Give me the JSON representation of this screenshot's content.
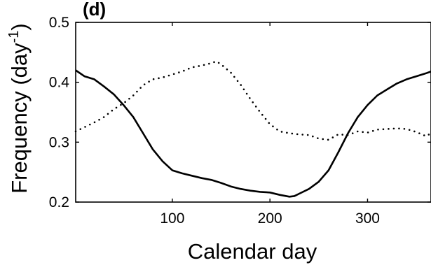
{
  "chart_data": {
    "type": "line",
    "panel_label": "(d)",
    "xlabel": "Calendar day",
    "ylabel_main": "Frequency (day",
    "ylabel_exponent": "-1",
    "ylabel_close": ")",
    "xlim": [
      1,
      365
    ],
    "ylim": [
      0.2,
      0.5
    ],
    "xticks": [
      100,
      200,
      300
    ],
    "xtick_labels": [
      "100",
      "200",
      "300"
    ],
    "yticks": [
      0.2,
      0.3,
      0.4,
      0.5
    ],
    "ytick_labels": [
      "0.2",
      "0.3",
      "0.4",
      "0.5"
    ],
    "grid": false,
    "series": [
      {
        "style": "solid",
        "color": "#000000",
        "x": [
          1,
          10,
          20,
          30,
          40,
          50,
          60,
          70,
          80,
          90,
          100,
          110,
          120,
          130,
          140,
          150,
          160,
          170,
          180,
          190,
          200,
          210,
          220,
          225,
          230,
          240,
          250,
          260,
          270,
          280,
          290,
          300,
          310,
          320,
          330,
          340,
          350,
          360,
          365
        ],
        "y": [
          0.42,
          0.41,
          0.405,
          0.393,
          0.38,
          0.362,
          0.342,
          0.315,
          0.288,
          0.268,
          0.253,
          0.248,
          0.244,
          0.24,
          0.237,
          0.232,
          0.226,
          0.222,
          0.219,
          0.217,
          0.216,
          0.212,
          0.209,
          0.21,
          0.214,
          0.222,
          0.234,
          0.253,
          0.283,
          0.315,
          0.342,
          0.362,
          0.378,
          0.388,
          0.398,
          0.405,
          0.41,
          0.415,
          0.418
        ]
      },
      {
        "style": "dotted",
        "color": "#000000",
        "x": [
          1,
          10,
          20,
          30,
          40,
          50,
          60,
          70,
          80,
          90,
          100,
          110,
          120,
          130,
          140,
          145,
          150,
          160,
          170,
          180,
          190,
          200,
          210,
          220,
          230,
          240,
          250,
          260,
          270,
          280,
          290,
          300,
          310,
          320,
          330,
          340,
          350,
          360,
          365
        ],
        "y": [
          0.318,
          0.325,
          0.333,
          0.342,
          0.355,
          0.365,
          0.378,
          0.395,
          0.405,
          0.408,
          0.413,
          0.418,
          0.425,
          0.428,
          0.432,
          0.435,
          0.43,
          0.416,
          0.396,
          0.372,
          0.35,
          0.33,
          0.318,
          0.315,
          0.313,
          0.312,
          0.306,
          0.304,
          0.313,
          0.312,
          0.318,
          0.316,
          0.321,
          0.322,
          0.323,
          0.322,
          0.317,
          0.31,
          0.315
        ]
      }
    ]
  }
}
